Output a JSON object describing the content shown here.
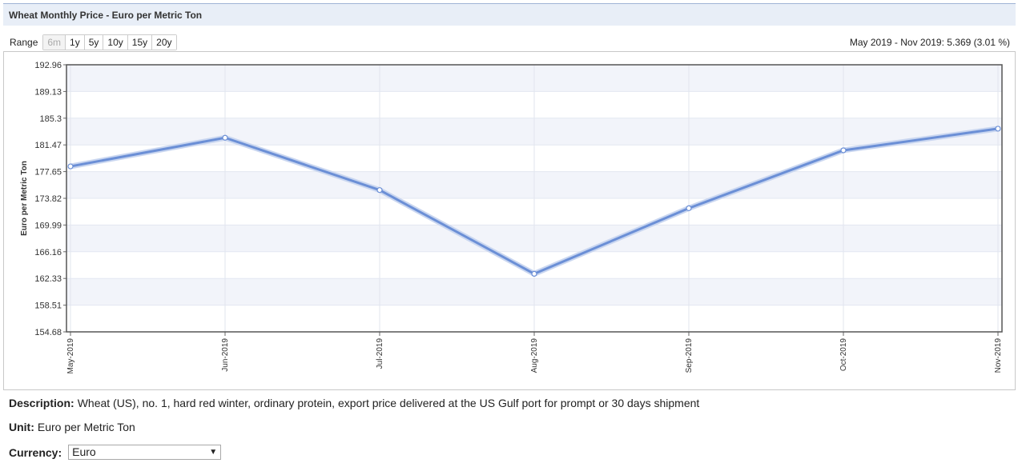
{
  "header": {
    "title": "Wheat Monthly Price - Euro per Metric Ton"
  },
  "range": {
    "label": "Range",
    "buttons": [
      {
        "label": "6m",
        "disabled": true
      },
      {
        "label": "1y",
        "disabled": false
      },
      {
        "label": "5y",
        "disabled": false
      },
      {
        "label": "10y",
        "disabled": false
      },
      {
        "label": "15y",
        "disabled": false
      },
      {
        "label": "20y",
        "disabled": false
      }
    ],
    "summary": "May 2019 - Nov 2019: 5.369 (3.01 %)"
  },
  "chart_data": {
    "type": "line",
    "categories": [
      "May-2019",
      "Jun-2019",
      "Jul-2019",
      "Aug-2019",
      "Sep-2019",
      "Oct-2019",
      "Nov-2019"
    ],
    "series": [
      {
        "values": [
          178.4,
          182.5,
          175.0,
          163.0,
          172.4,
          180.7,
          183.8
        ]
      }
    ],
    "ylabel": "Euro per Metric Ton",
    "ylim": [
      154.68,
      192.96
    ],
    "yticks": [
      "192.96",
      "189.13",
      "185.3",
      "181.47",
      "177.65",
      "173.82",
      "169.99",
      "166.16",
      "162.33",
      "158.51",
      "154.68"
    ],
    "grid": true,
    "line_color": "#6b8fd6"
  },
  "info": {
    "description_label": "Description:",
    "description": "Wheat (US), no. 1, hard red winter, ordinary protein, export price delivered at the US Gulf port for prompt or 30 days shipment",
    "unit_label": "Unit:",
    "unit": "Euro per Metric Ton",
    "currency_label": "Currency:",
    "currency_value": "Euro"
  }
}
